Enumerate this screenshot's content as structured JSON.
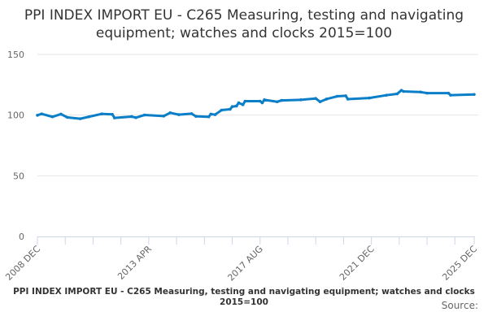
{
  "chart_data": {
    "type": "line",
    "title": "PPI INDEX IMPORT EU - C265 Measuring, testing and navigating equipment; watches and clocks 2015=100",
    "caption": "PPI INDEX IMPORT EU - C265 Measuring, testing and navigating equipment; watches and clocks 2015=100",
    "source_label": "Source:",
    "ylim": [
      0,
      150
    ],
    "yticks": [
      0,
      50,
      100,
      150
    ],
    "xlim": [
      "2008-12",
      "2025-12"
    ],
    "xtick_labels": [
      {
        "date": "2008-12",
        "label": "2008 DEC"
      },
      {
        "date": "2013-04",
        "label": "2013 APR"
      },
      {
        "date": "2017-08",
        "label": "2017 AUG"
      },
      {
        "date": "2021-12",
        "label": "2021 DEC"
      },
      {
        "date": "2025-12",
        "label": "2025 DEC"
      }
    ],
    "grid": true,
    "color": "#0a7fc8",
    "series": [
      {
        "points": [
          [
            "2008-12",
            99.9
          ],
          [
            "2009-02",
            101.0
          ],
          [
            "2009-07",
            98.6
          ],
          [
            "2009-11",
            100.8
          ],
          [
            "2010-02",
            98.1
          ],
          [
            "2010-08",
            97.0
          ],
          [
            "2010-12",
            98.6
          ],
          [
            "2011-06",
            101.0
          ],
          [
            "2011-11",
            100.6
          ],
          [
            "2011-12",
            97.7
          ],
          [
            "2012-08",
            98.8
          ],
          [
            "2012-10",
            97.9
          ],
          [
            "2013-02",
            100.1
          ],
          [
            "2013-11",
            99.2
          ],
          [
            "2014-02",
            101.9
          ],
          [
            "2014-06",
            100.4
          ],
          [
            "2014-12",
            101.2
          ],
          [
            "2015-02",
            99.0
          ],
          [
            "2015-08",
            98.6
          ],
          [
            "2015-09",
            100.8
          ],
          [
            "2015-11",
            100.4
          ],
          [
            "2016-02",
            104.1
          ],
          [
            "2016-06",
            104.8
          ],
          [
            "2016-07",
            107.0
          ],
          [
            "2016-09",
            107.5
          ],
          [
            "2016-10",
            110.1
          ],
          [
            "2016-12",
            108.6
          ],
          [
            "2017-01",
            111.5
          ],
          [
            "2017-08",
            111.5
          ],
          [
            "2017-09",
            110.1
          ],
          [
            "2017-10",
            112.6
          ],
          [
            "2018-04",
            111.0
          ],
          [
            "2018-06",
            112.1
          ],
          [
            "2019-03",
            112.6
          ],
          [
            "2019-10",
            113.7
          ],
          [
            "2019-12",
            111.0
          ],
          [
            "2020-03",
            113.2
          ],
          [
            "2020-08",
            115.5
          ],
          [
            "2020-12",
            115.9
          ],
          [
            "2021-01",
            113.2
          ],
          [
            "2021-11",
            114.1
          ],
          [
            "2022-07",
            116.4
          ],
          [
            "2022-12",
            117.5
          ],
          [
            "2023-02",
            120.4
          ],
          [
            "2023-03",
            119.5
          ],
          [
            "2023-11",
            119.0
          ],
          [
            "2024-02",
            118.1
          ],
          [
            "2024-12",
            118.1
          ],
          [
            "2025-01",
            116.4
          ],
          [
            "2025-12",
            117.0
          ]
        ]
      }
    ]
  }
}
